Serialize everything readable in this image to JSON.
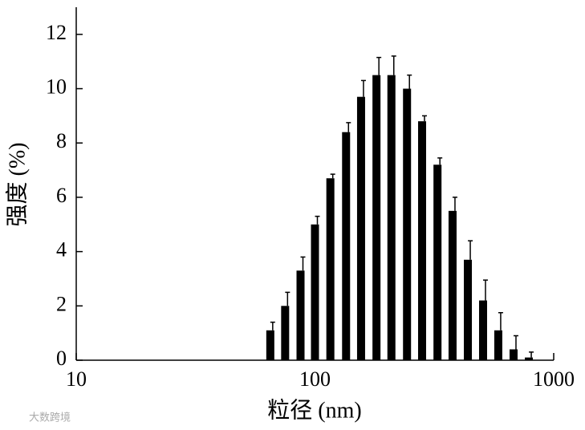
{
  "chart_data": {
    "type": "bar",
    "xscale": "log",
    "xlabel": "粒径 (nm)",
    "ylabel": "强度 (%)",
    "watermark": "大数跨境",
    "x": [
      65,
      75,
      87,
      100,
      116,
      135,
      156,
      181,
      209,
      243,
      281,
      326,
      377,
      437,
      506,
      586,
      679,
      787
    ],
    "values": [
      1.1,
      2.0,
      3.3,
      5.0,
      6.7,
      8.4,
      9.7,
      10.5,
      10.5,
      10.0,
      8.8,
      7.2,
      5.5,
      3.7,
      2.2,
      1.1,
      0.4,
      0.1
    ],
    "errors": [
      0.3,
      0.5,
      0.5,
      0.3,
      0.15,
      0.35,
      0.6,
      0.65,
      0.7,
      0.5,
      0.2,
      0.25,
      0.5,
      0.7,
      0.75,
      0.65,
      0.5,
      0.2
    ],
    "color": "#000000",
    "xlim": [
      10,
      1000
    ],
    "xticks": [
      10,
      100,
      1000
    ],
    "ylim": [
      0,
      13
    ],
    "yticks": [
      0,
      2,
      4,
      6,
      8,
      10,
      12
    ]
  }
}
